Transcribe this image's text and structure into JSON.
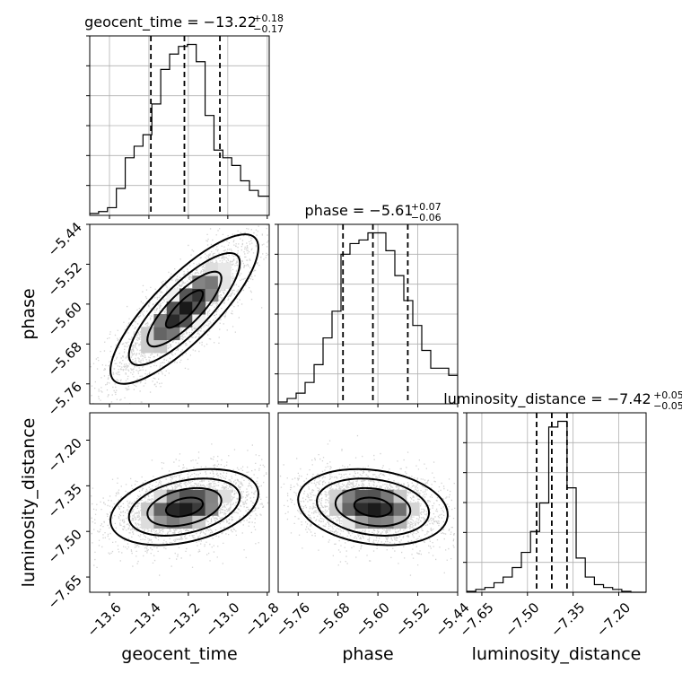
{
  "chart_data": {
    "type": "corner",
    "parameters": [
      {
        "name": "geocent_time",
        "title": {
          "main": "geocent_time = −13.22",
          "plus": "+0.18",
          "minus": "−0.17"
        },
        "median": -13.22,
        "quantiles": [
          -13.39,
          -13.22,
          -13.04
        ],
        "range": [
          -13.7,
          -12.79
        ],
        "ticks": [
          {
            "v": -13.6,
            "label": "−13.6"
          },
          {
            "v": -13.4,
            "label": "−13.4"
          },
          {
            "v": -13.2,
            "label": "−13.2"
          },
          {
            "v": -13.0,
            "label": "−13.0"
          },
          {
            "v": -12.8,
            "label": "−12.8"
          }
        ],
        "histogram": {
          "edges": [
            -13.7,
            -13.655,
            -13.61,
            -13.565,
            -13.52,
            -13.475,
            -13.43,
            -13.385,
            -13.34,
            -13.295,
            -13.25,
            -13.205,
            -13.16,
            -13.115,
            -13.07,
            -13.025,
            -12.98,
            -12.935,
            -12.89,
            -12.845,
            -12.79
          ],
          "counts": [
            1,
            2,
            4,
            14,
            30,
            36,
            42,
            58,
            76,
            84,
            88,
            89,
            80,
            52,
            34,
            30,
            26,
            18,
            13,
            10
          ]
        }
      },
      {
        "name": "phase",
        "title": {
          "main": "phase = −5.61",
          "plus": "+0.07",
          "minus": "−0.06"
        },
        "median": -5.61,
        "quantiles": [
          -5.67,
          -5.61,
          -5.54
        ],
        "range": [
          -5.8,
          -5.44
        ],
        "ticks": [
          {
            "v": -5.76,
            "label": "−5.76"
          },
          {
            "v": -5.68,
            "label": "−5.68"
          },
          {
            "v": -5.6,
            "label": "−5.60"
          },
          {
            "v": -5.52,
            "label": "−5.52"
          },
          {
            "v": -5.44,
            "label": "−5.44"
          }
        ],
        "histogram": {
          "edges": [
            -5.8,
            -5.782,
            -5.764,
            -5.746,
            -5.728,
            -5.71,
            -5.692,
            -5.674,
            -5.656,
            -5.638,
            -5.62,
            -5.602,
            -5.584,
            -5.566,
            -5.548,
            -5.53,
            -5.512,
            -5.494,
            -5.476,
            -5.458,
            -5.44
          ],
          "counts": [
            1,
            3,
            6,
            12,
            22,
            37,
            52,
            84,
            90,
            92,
            96,
            96,
            86,
            72,
            58,
            44,
            30,
            20,
            20,
            16
          ]
        }
      },
      {
        "name": "luminosity_distance",
        "title": {
          "main": "luminosity_distance = −7.42",
          "plus": "+0.05",
          "minus": "−0.05"
        },
        "median": -7.42,
        "quantiles": [
          -7.47,
          -7.42,
          -7.37
        ],
        "range": [
          -7.7,
          -7.11
        ],
        "ticks": [
          {
            "v": -7.65,
            "label": "−7.65"
          },
          {
            "v": -7.5,
            "label": "−7.50"
          },
          {
            "v": -7.35,
            "label": "−7.35"
          },
          {
            "v": -7.2,
            "label": "−7.20"
          }
        ],
        "histogram": {
          "edges": [
            -7.7,
            -7.67,
            -7.64,
            -7.61,
            -7.58,
            -7.55,
            -7.52,
            -7.49,
            -7.46,
            -7.43,
            -7.4,
            -7.37,
            -7.34,
            -7.31,
            -7.28,
            -7.25,
            -7.22,
            -7.19,
            -7.16,
            -7.13,
            -7.11
          ],
          "counts": [
            1,
            3,
            5,
            10,
            16,
            26,
            42,
            64,
            94,
            174,
            180,
            110,
            36,
            16,
            8,
            5,
            3,
            1,
            0,
            0
          ]
        }
      }
    ],
    "pairs": [
      {
        "x": "geocent_time",
        "y": "phase",
        "mean": [
          -13.22,
          -5.61
        ],
        "sd": [
          0.15,
          0.06
        ],
        "corr": 0.82
      },
      {
        "x": "geocent_time",
        "y": "luminosity_distance",
        "mean": [
          -13.22,
          -7.42
        ],
        "sd": [
          0.15,
          0.05
        ],
        "corr": 0.35
      },
      {
        "x": "phase",
        "y": "luminosity_distance",
        "mean": [
          -5.61,
          -7.42
        ],
        "sd": [
          0.06,
          0.05
        ],
        "corr": -0.2
      }
    ],
    "contour_levels_sigma": [
      0.5,
      1.0,
      1.5,
      2.0
    ],
    "quantile_line_style": "dashed",
    "grid": true,
    "scatter_color": "#808080",
    "hist_color": "#000000"
  }
}
